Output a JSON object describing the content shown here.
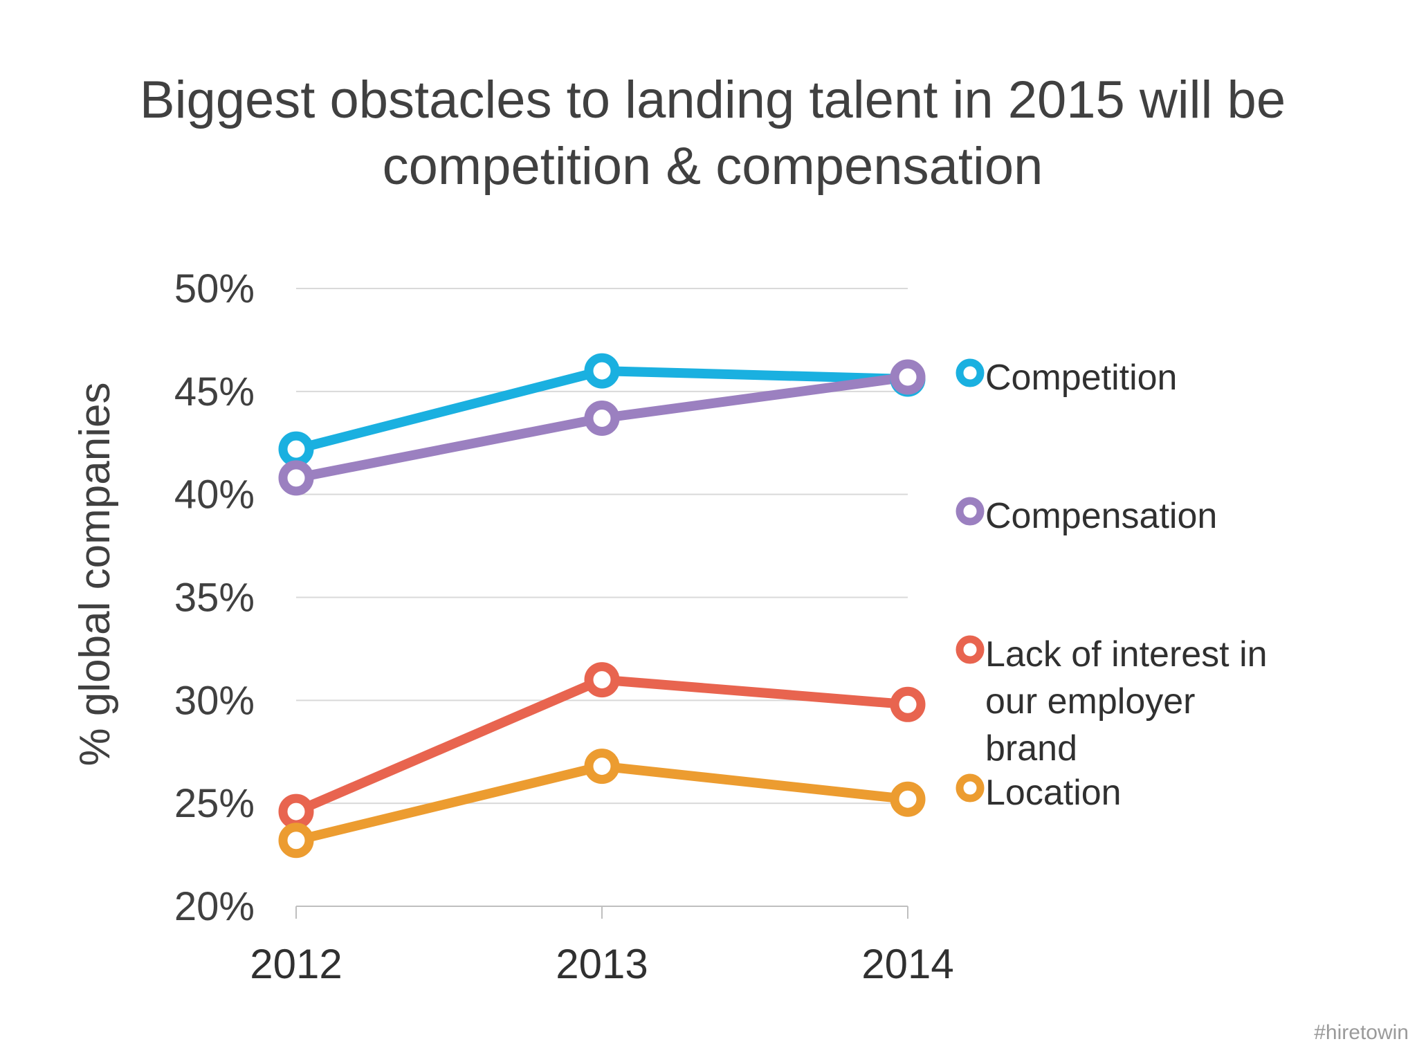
{
  "chart_data": {
    "type": "line",
    "title_lines": [
      "Biggest obstacles to landing talent in 2015 will be",
      "competition & compensation"
    ],
    "ylabel": "% global companies",
    "xlabel": "",
    "categories": [
      "2012",
      "2013",
      "2014"
    ],
    "ylim": [
      20,
      50
    ],
    "yticks": [
      20,
      25,
      30,
      35,
      40,
      45,
      50
    ],
    "ytick_labels": [
      "20%",
      "25%",
      "30%",
      "35%",
      "40%",
      "45%",
      "50%"
    ],
    "grid": true,
    "legend_position": "right",
    "series": [
      {
        "name": "Competition",
        "legend_lines": [
          "Competition"
        ],
        "color": "#1ab0e0",
        "values": [
          42.2,
          46.0,
          45.6
        ]
      },
      {
        "name": "Compensation",
        "legend_lines": [
          "Compensation"
        ],
        "color": "#9b80c0",
        "values": [
          40.8,
          43.7,
          45.7
        ]
      },
      {
        "name": "Lack of interest in our employer brand",
        "legend_lines": [
          "Lack of interest in",
          "our employer",
          "brand"
        ],
        "color": "#e8644f",
        "values": [
          24.6,
          31.0,
          29.8
        ]
      },
      {
        "name": "Location",
        "legend_lines": [
          "Location"
        ],
        "color": "#ec9c30",
        "values": [
          23.2,
          26.8,
          25.2
        ]
      }
    ]
  },
  "watermark": "#hiretowin"
}
